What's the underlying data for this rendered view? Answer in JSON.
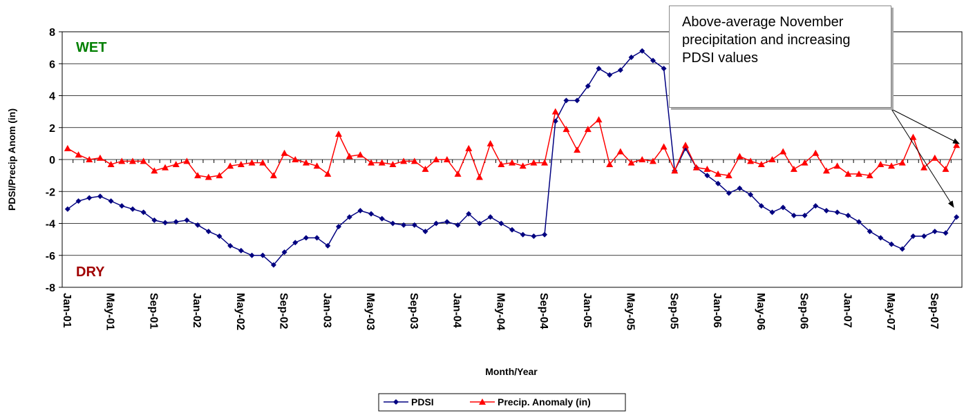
{
  "chart_data": {
    "type": "line",
    "x_label": "Month/Year",
    "y_label": "PDSI/Precip Anom (in)",
    "annotations": {
      "wet": "WET",
      "dry": "DRY",
      "callout": "Above-average November precipitation and increasing PDSI values"
    },
    "categories": [
      "Jan-01",
      null,
      null,
      null,
      "May-01",
      null,
      null,
      null,
      "Sep-01",
      null,
      null,
      null,
      "Jan-02",
      null,
      null,
      null,
      "May-02",
      null,
      null,
      null,
      "Sep-02",
      null,
      null,
      null,
      "Jan-03",
      null,
      null,
      null,
      "May-03",
      null,
      null,
      null,
      "Sep-03",
      null,
      null,
      null,
      "Jan-04",
      null,
      null,
      null,
      "May-04",
      null,
      null,
      null,
      "Sep-04",
      null,
      null,
      null,
      "Jan-05",
      null,
      null,
      null,
      "May-05",
      null,
      null,
      null,
      "Sep-05",
      null,
      null,
      null,
      "Jan-06",
      null,
      null,
      null,
      "May-06",
      null,
      null,
      null,
      "Sep-06",
      null,
      null,
      null,
      "Jan-07",
      null,
      null,
      null,
      "May-07",
      null,
      null,
      null,
      "Sep-07",
      null,
      null
    ],
    "series": [
      {
        "name": "PDSI",
        "color": "#000080",
        "marker": "diamond",
        "values": [
          -3.1,
          -2.6,
          -2.4,
          -2.3,
          -2.6,
          -2.9,
          -3.1,
          -3.3,
          -3.8,
          -3.95,
          -3.9,
          -3.8,
          -4.1,
          -4.5,
          -4.8,
          -5.4,
          -5.7,
          -6.0,
          -6.0,
          -6.6,
          -5.8,
          -5.2,
          -4.9,
          -4.9,
          -5.4,
          -4.2,
          -3.6,
          -3.2,
          -3.4,
          -3.7,
          -4.0,
          -4.1,
          -4.1,
          -4.5,
          -4.0,
          -3.9,
          -4.1,
          -3.4,
          -4.0,
          -3.6,
          -4.0,
          -4.4,
          -4.7,
          -4.8,
          -4.7,
          2.4,
          3.7,
          3.7,
          4.6,
          5.7,
          5.3,
          5.6,
          6.4,
          6.8,
          6.2,
          5.7,
          -0.7,
          0.7,
          -0.5,
          -1.0,
          -1.5,
          -2.1,
          -1.8,
          -2.2,
          -2.9,
          -3.3,
          -3.0,
          -3.5,
          -3.5,
          -2.9,
          -3.2,
          -3.3,
          -3.5,
          -3.9,
          -4.5,
          -4.9,
          -5.3,
          -5.6,
          -4.8,
          -4.8,
          -4.5,
          -4.6,
          -3.6
        ]
      },
      {
        "name": "Precip. Anomaly (in)",
        "color": "#ff0000",
        "marker": "triangle",
        "values": [
          0.7,
          0.3,
          0.0,
          0.1,
          -0.3,
          -0.1,
          -0.1,
          -0.1,
          -0.7,
          -0.5,
          -0.3,
          -0.1,
          -1.0,
          -1.1,
          -1.0,
          -0.4,
          -0.3,
          -0.2,
          -0.2,
          -1.0,
          0.4,
          0.0,
          -0.2,
          -0.4,
          -0.9,
          1.6,
          0.2,
          0.3,
          -0.2,
          -0.2,
          -0.3,
          -0.1,
          -0.1,
          -0.6,
          0.0,
          0.0,
          -0.9,
          0.7,
          -1.1,
          1.0,
          -0.3,
          -0.2,
          -0.4,
          -0.2,
          -0.2,
          3.0,
          1.9,
          0.6,
          1.9,
          2.5,
          -0.3,
          0.5,
          -0.2,
          0.0,
          -0.1,
          0.8,
          -0.7,
          0.9,
          -0.5,
          -0.6,
          -0.9,
          -1.0,
          0.2,
          -0.1,
          -0.3,
          0.0,
          0.5,
          -0.6,
          -0.2,
          0.4,
          -0.7,
          -0.4,
          -0.9,
          -0.9,
          -1.0,
          -0.3,
          -0.4,
          -0.2,
          1.4,
          -0.5,
          0.1,
          -0.6,
          0.9
        ]
      }
    ],
    "ylim": [
      -8,
      8
    ],
    "yticks": [
      -8,
      -6,
      -4,
      -2,
      0,
      2,
      4,
      6,
      8
    ],
    "grid": true
  }
}
